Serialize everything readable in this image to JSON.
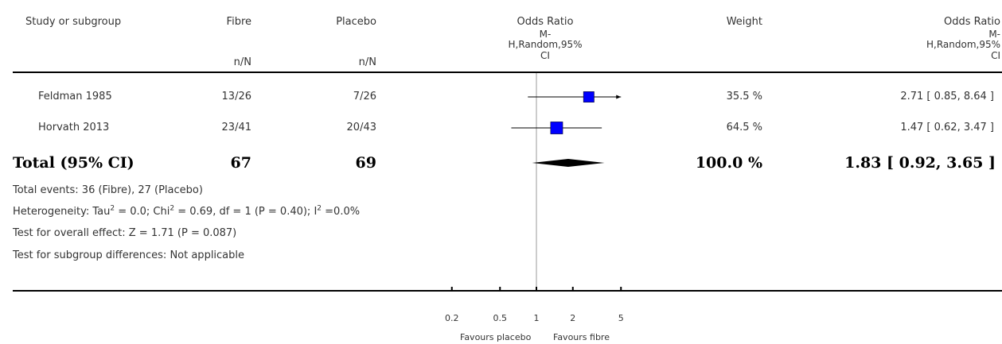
{
  "headers": {
    "study": "Study or subgroup",
    "exp_group": "Fibre",
    "ctrl_group": "Placebo",
    "exp_nN": "n/N",
    "ctrl_nN": "n/N",
    "or_col_line1": "Odds Ratio",
    "or_col_line2": "M-",
    "or_col_line3": "H,Random,95%",
    "or_col_line4": "CI",
    "weight": "Weight",
    "or_text_line1": "Odds Ratio",
    "or_text_line2": "M-",
    "or_text_line3": "H,Random,95%",
    "or_text_line4": "CI"
  },
  "studies": [
    {
      "name": "Feldman 1985",
      "exp": "13/26",
      "ctrl": "7/26",
      "weight": "35.5 %",
      "ci_text": "2.71 [ 0.85, 8.64 ]"
    },
    {
      "name": "Horvath 2013",
      "exp": "23/41",
      "ctrl": "20/43",
      "weight": "64.5 %",
      "ci_text": "1.47 [ 0.62, 3.47 ]"
    }
  ],
  "total": {
    "label": "Total (95% CI)",
    "exp": "67",
    "ctrl": "69",
    "weight": "100.0 %",
    "ci_text": "1.83 [ 0.92, 3.65 ]"
  },
  "footer": {
    "events": "Total events: 36 (Fibre), 27 (Placebo)",
    "het_a": "Heterogeneity: Tau",
    "het_b": " = 0.0; Chi",
    "het_c": " = 0.69, df = 1 (P = 0.40); I",
    "het_d": " =0.0%",
    "sup2": "2",
    "overall": "Test for overall effect: Z = 1.71 (P = 0.087)",
    "subgroup": "Test for subgroup differences: Not applicable"
  },
  "axis": {
    "favours_left": "Favours placebo",
    "favours_right": "Favours fibre"
  },
  "colors": {
    "marker": "#0000ff",
    "line": "#000000",
    "diamond": "#000000",
    "null_line": "#999999"
  },
  "chart_data": {
    "type": "forest",
    "scale": "log",
    "xlim": [
      0.2,
      5
    ],
    "ticks": [
      0.2,
      0.5,
      1,
      2,
      5
    ],
    "tick_labels": [
      "0.2",
      "0.5",
      "1",
      "2",
      "5"
    ],
    "null_value": 1,
    "studies": [
      {
        "name": "Feldman 1985",
        "or": 2.71,
        "lo": 0.85,
        "hi": 8.64,
        "weight": 35.5,
        "arrow_right": true
      },
      {
        "name": "Horvath 2013",
        "or": 1.47,
        "lo": 0.62,
        "hi": 3.47,
        "weight": 64.5,
        "arrow_right": false
      }
    ],
    "pooled": {
      "or": 1.83,
      "lo": 0.92,
      "hi": 3.65
    }
  }
}
